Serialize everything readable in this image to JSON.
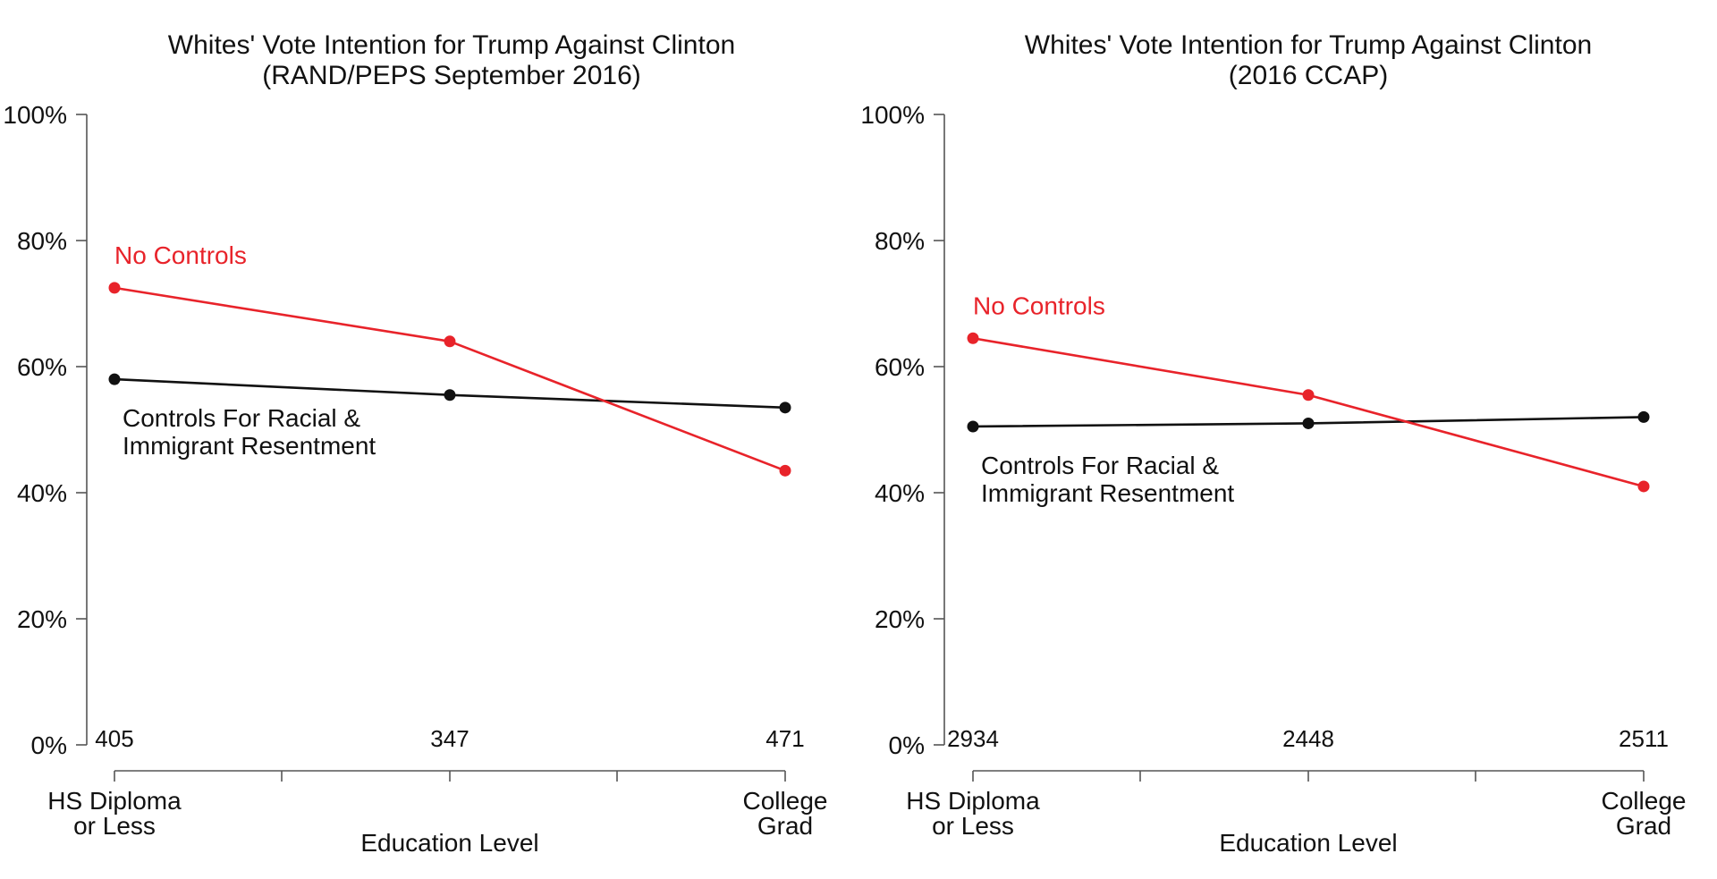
{
  "colors": {
    "no_controls": "#e8232a",
    "controls": "#111111",
    "axis": "#555555"
  },
  "chart_data": [
    {
      "type": "line",
      "title": "Whites' Vote Intention for Trump Against Clinton",
      "subtitle": "(RAND/PEPS September 2016)",
      "xlabel": "Education Level",
      "ylabel": "",
      "ylim": [
        0,
        100
      ],
      "y_ticks": [
        "0%",
        "20%",
        "40%",
        "60%",
        "80%",
        "100%"
      ],
      "categories": [
        {
          "line1": "HS Diploma",
          "line2": "or Less"
        },
        {
          "line1": "",
          "line2": ""
        },
        {
          "line1": "College",
          "line2": "Grad"
        }
      ],
      "sample_sizes": [
        "405",
        "347",
        "471"
      ],
      "series": [
        {
          "name": "No Controls",
          "color": "#e8232a",
          "values": [
            72.5,
            64,
            43.5
          ]
        },
        {
          "name": "Controls For Racial & Immigrant Resentment",
          "label_line1": "Controls For Racial &",
          "label_line2": "Immigrant Resentment",
          "color": "#111111",
          "values": [
            58,
            55.5,
            53.5
          ]
        }
      ],
      "legend": "inline annotations",
      "grid": false
    },
    {
      "type": "line",
      "title": "Whites' Vote Intention for Trump Against Clinton",
      "subtitle": "(2016 CCAP)",
      "xlabel": "Education Level",
      "ylabel": "",
      "ylim": [
        0,
        100
      ],
      "y_ticks": [
        "0%",
        "20%",
        "40%",
        "60%",
        "80%",
        "100%"
      ],
      "categories": [
        {
          "line1": "HS Diploma",
          "line2": "or Less"
        },
        {
          "line1": "",
          "line2": ""
        },
        {
          "line1": "College",
          "line2": "Grad"
        }
      ],
      "sample_sizes": [
        "2934",
        "2448",
        "2511"
      ],
      "series": [
        {
          "name": "No Controls",
          "color": "#e8232a",
          "values": [
            64.5,
            55.5,
            41
          ]
        },
        {
          "name": "Controls For Racial & Immigrant Resentment",
          "label_line1": "Controls For Racial &",
          "label_line2": "Immigrant Resentment",
          "color": "#111111",
          "values": [
            50.5,
            51,
            52
          ]
        }
      ],
      "legend": "inline annotations",
      "grid": false
    }
  ]
}
